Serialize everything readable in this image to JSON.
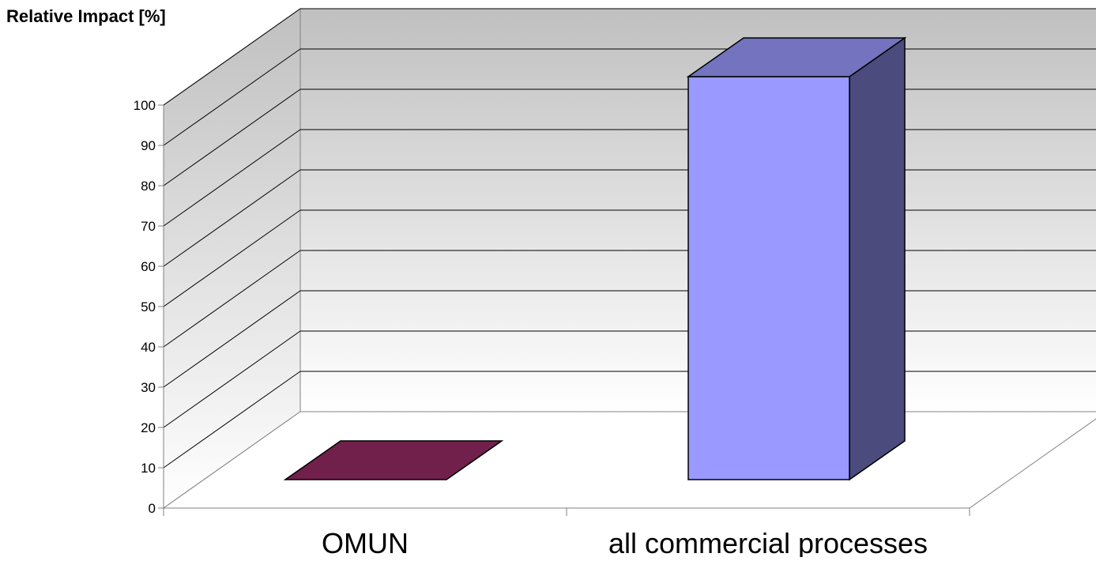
{
  "chart_data": {
    "type": "bar",
    "ylabel": "Relative Impact [%]",
    "xlabel": "",
    "categories": [
      "OMUN",
      "all commercial processes"
    ],
    "series": [
      {
        "values": [
          0,
          100
        ]
      }
    ],
    "bar_colors": [
      {
        "front": "#70204a",
        "top": "#70204a",
        "side": "#50183a"
      },
      {
        "front": "#9999ff",
        "top": "#7373bf",
        "side": "#4b4b7d"
      }
    ],
    "ylim": [
      0,
      100
    ],
    "yticks": [
      0,
      10,
      20,
      30,
      40,
      50,
      60,
      70,
      80,
      90,
      100
    ],
    "grid": true,
    "style": "3d",
    "wall_gradient": [
      "#c0c0c0",
      "#ffffff"
    ]
  }
}
